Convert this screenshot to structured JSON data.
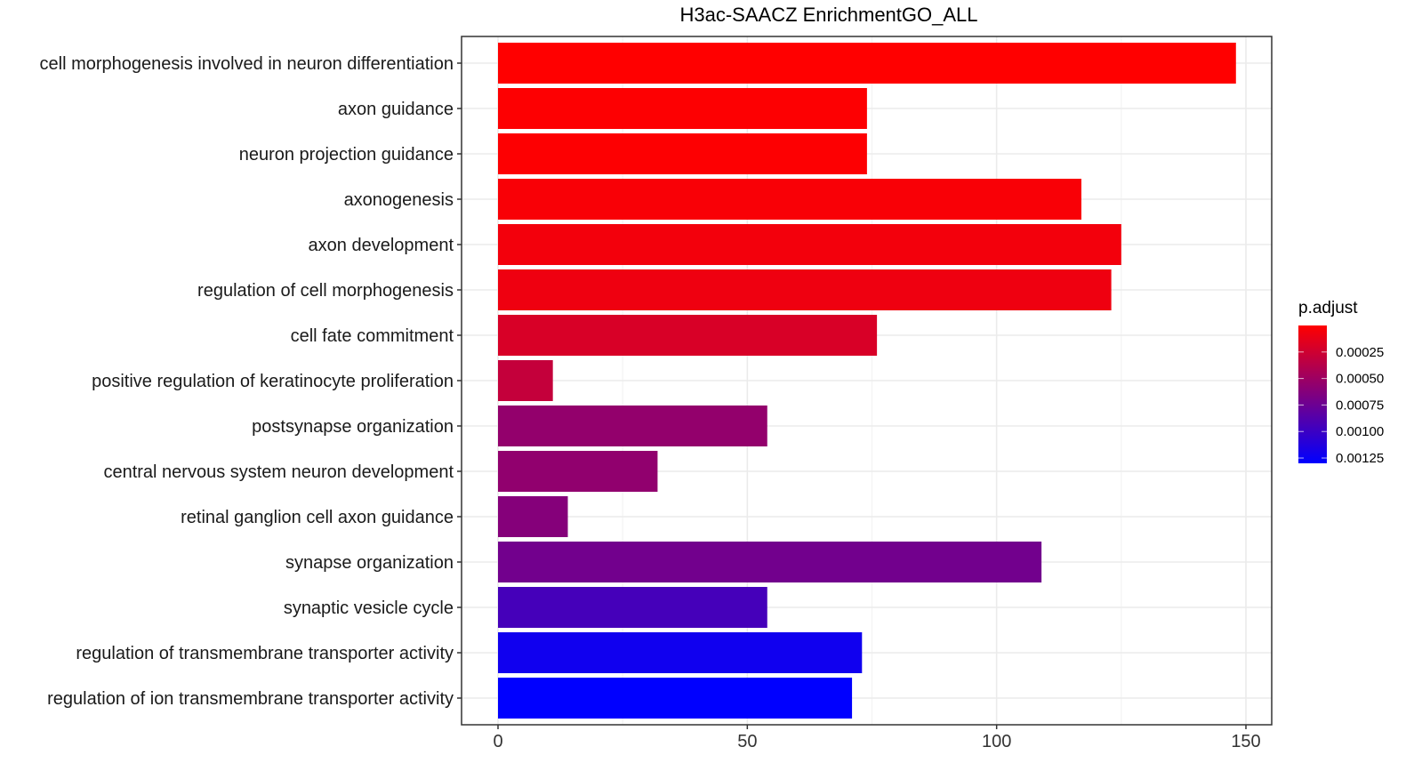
{
  "chart_data": {
    "type": "bar",
    "orientation": "horizontal",
    "title": "H3ac-SAACZ EnrichmentGO_ALL",
    "xlabel": "",
    "ylabel": "",
    "xlim": [
      0,
      150
    ],
    "xticks": [
      "0",
      "50",
      "100",
      "150"
    ],
    "xtick_values": [
      0,
      50,
      100,
      150
    ],
    "grid": true,
    "categories": [
      "cell morphogenesis involved in neuron differentiation",
      "axon guidance",
      "neuron projection guidance",
      "axonogenesis",
      "axon development",
      "regulation of cell morphogenesis",
      "cell fate commitment",
      "positive regulation of keratinocyte proliferation",
      "postsynapse organization",
      "central nervous system neuron development",
      "retinal ganglion cell axon guidance",
      "synapse organization",
      "synaptic vesicle cycle",
      "regulation of transmembrane transporter activity",
      "regulation of ion transmembrane transporter activity"
    ],
    "values": [
      148,
      74,
      74,
      117,
      125,
      123,
      76,
      11,
      54,
      32,
      14,
      109,
      54,
      73,
      71
    ],
    "p_adjust": [
      1e-06,
      1e-05,
      1e-05,
      3e-05,
      6e-05,
      8e-05,
      0.0002,
      0.0003,
      0.00055,
      0.00056,
      0.00062,
      0.00072,
      0.00095,
      0.00122,
      0.0013
    ],
    "legend": {
      "title": "p.adjust",
      "placement": "right",
      "range": [
        0,
        0.0013
      ],
      "ticks": [
        "0.00025",
        "0.00050",
        "0.00075",
        "0.00100",
        "0.00125"
      ],
      "tick_values": [
        0.00025,
        0.0005,
        0.00075,
        0.001,
        0.00125
      ],
      "low_color": "#FF0000",
      "high_color": "#0000FF"
    }
  }
}
